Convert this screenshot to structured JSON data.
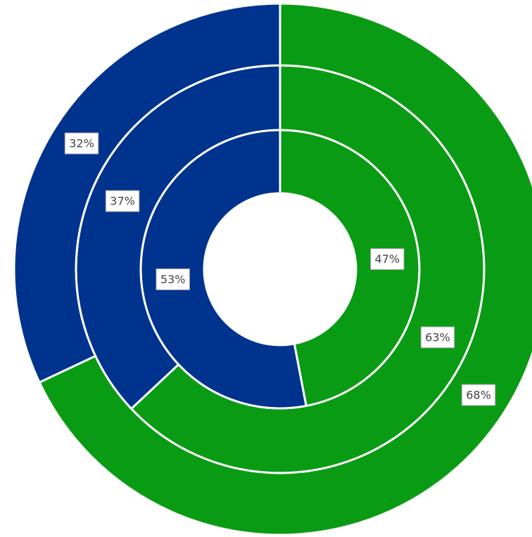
{
  "chart_data": {
    "type": "donut",
    "colors": [
      "#0a9b14",
      "#00338d"
    ],
    "rings": [
      {
        "values": [
          47,
          53
        ],
        "value_labels": [
          "47%",
          "53%"
        ]
      },
      {
        "values": [
          63,
          37
        ],
        "value_labels": [
          "63%",
          "37%"
        ]
      },
      {
        "values": [
          68,
          32
        ],
        "value_labels": [
          "68%",
          "32%"
        ]
      }
    ]
  }
}
